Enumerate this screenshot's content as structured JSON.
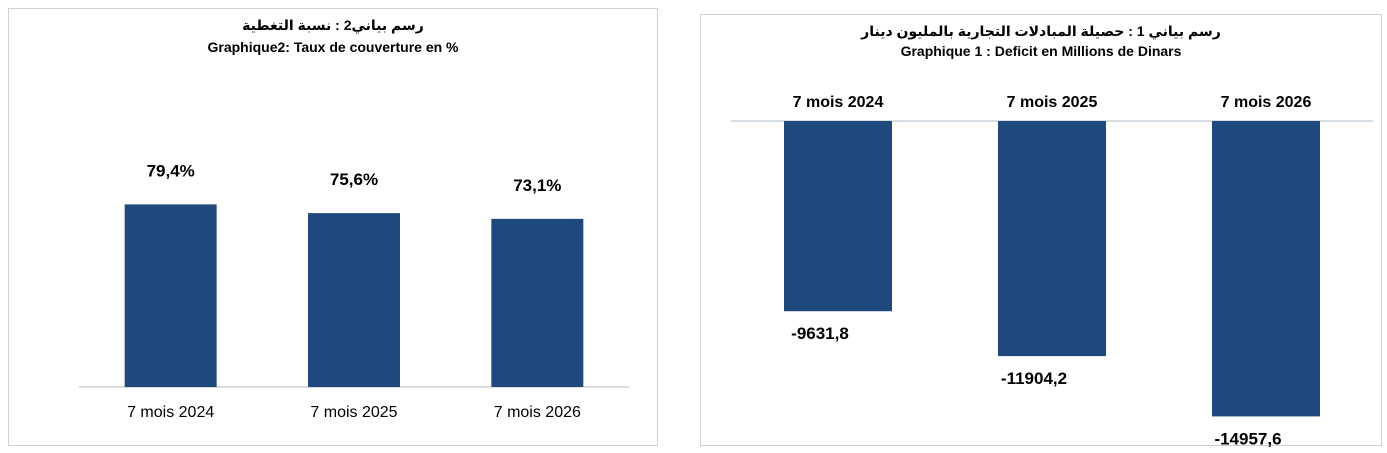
{
  "chart_data": [
    {
      "type": "bar",
      "title": "رسم بياني2 : نسبة التغطية",
      "subtitle": "Graphique2: Taux de couverture en %",
      "categories": [
        "7 mois 2024",
        "7 mois 2025",
        "7 mois 2026"
      ],
      "values": [
        79.4,
        75.6,
        73.1
      ],
      "data_labels": [
        "79,4%",
        "75,6%",
        "73,1%"
      ],
      "bar_color": "#1f497d",
      "ylim": [
        0,
        100
      ],
      "grid": false,
      "legend": "none"
    },
    {
      "type": "bar",
      "title": "رسم بياني 1 : حصيلة المبادلات التجارية بالمليون دينار",
      "subtitle": "Graphique 1 : Deficit en Millions de Dinars",
      "categories": [
        "7 mois 2024",
        "7 mois 2025",
        "7 mois 2026"
      ],
      "values": [
        -9631.8,
        -11904.2,
        -14957.6
      ],
      "data_labels": [
        "-9631,8",
        "-11904,2",
        "-14957,6"
      ],
      "bar_color": "#1f497d",
      "ylim": [
        -16000,
        0
      ],
      "category_axis_position": "top",
      "grid": false,
      "legend": "none"
    }
  ]
}
